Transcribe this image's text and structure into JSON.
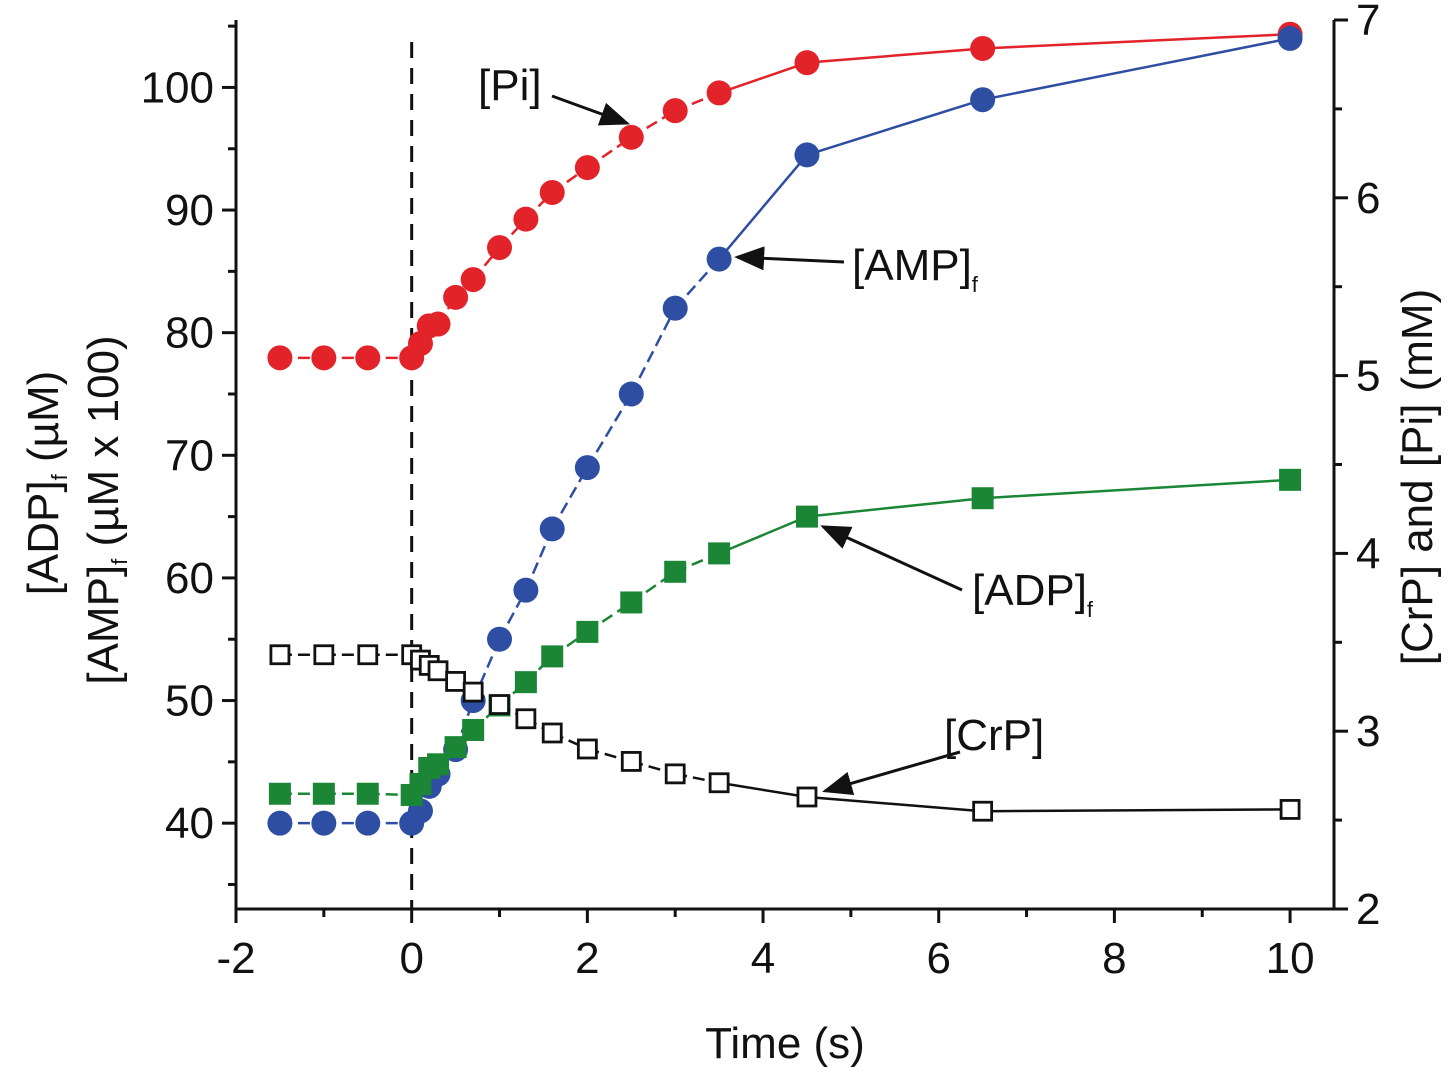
{
  "chart_data": {
    "type": "line",
    "title": "",
    "xlabel": "Time (s)",
    "ylabel_left": {
      "line1": "[ADP]",
      "line1_sub": "f",
      "line1_unit": " (µM)",
      "line2": "[AMP]",
      "line2_sub": "f",
      "line2_unit": " (µM x 100)"
    },
    "ylabel_right": "[CrP] and [Pi] (mM)",
    "xlim": [
      -2,
      10.5
    ],
    "ylim_left": [
      33,
      105.5
    ],
    "ylim_right": [
      2,
      7
    ],
    "x_ticks": [
      -2,
      0,
      2,
      4,
      6,
      8,
      10
    ],
    "x_tick_labels": [
      "-2",
      "0",
      "2",
      "4",
      "6",
      "8",
      "10"
    ],
    "y_left_ticks": [
      40,
      50,
      60,
      70,
      80,
      90,
      100
    ],
    "y_left_tick_labels": [
      "40",
      "50",
      "60",
      "70",
      "80",
      "90",
      "100"
    ],
    "y_right_ticks": [
      2,
      3,
      4,
      5,
      6,
      7
    ],
    "y_right_tick_labels": [
      "2",
      "3",
      "4",
      "5",
      "6",
      "7"
    ],
    "reference_line": {
      "x": 0,
      "style": "dashed",
      "color": "#111111"
    },
    "series": [
      {
        "name": "[Pi]",
        "axis": "right",
        "color": "#e3232a",
        "marker": "circle-filled",
        "x": [
          -1.5,
          -1,
          -0.5,
          0,
          0.1,
          0.2,
          0.3,
          0.5,
          0.7,
          1,
          1.3,
          1.6,
          2,
          2.5,
          3,
          3.5,
          4.5,
          6.5,
          10
        ],
        "values": [
          5.1,
          5.1,
          5.1,
          5.1,
          5.18,
          5.28,
          5.29,
          5.44,
          5.54,
          5.72,
          5.88,
          6.03,
          6.17,
          6.34,
          6.49,
          6.59,
          6.76,
          6.84,
          6.92
        ]
      },
      {
        "name": "[AMP]f",
        "axis": "left",
        "color": "#2e4ea3",
        "marker": "circle-filled",
        "x": [
          -1.5,
          -1,
          -0.5,
          0,
          0.1,
          0.2,
          0.3,
          0.5,
          0.7,
          1,
          1.3,
          1.6,
          2,
          2.5,
          3,
          3.5,
          4.5,
          6.5,
          10
        ],
        "values": [
          40,
          40,
          40,
          40,
          41,
          43,
          44,
          46,
          50,
          55,
          59,
          64,
          69,
          75,
          82,
          86,
          94.5,
          99,
          104
        ]
      },
      {
        "name": "[ADP]f",
        "axis": "left",
        "color": "#1a8636",
        "marker": "square-filled",
        "x": [
          -1.5,
          -1,
          -0.5,
          0,
          0.1,
          0.2,
          0.3,
          0.5,
          0.7,
          1,
          1.3,
          1.6,
          2,
          2.5,
          3,
          3.5,
          4.5,
          6.5,
          10
        ],
        "values": [
          42.4,
          42.4,
          42.4,
          42.3,
          43.2,
          44.5,
          44.8,
          46.2,
          47.6,
          49.6,
          51.5,
          53.6,
          55.6,
          58,
          60.5,
          62,
          65,
          66.5,
          68
        ]
      },
      {
        "name": "[CrP]",
        "axis": "right",
        "color": "#111111",
        "marker": "square-open",
        "x": [
          -1.5,
          -1,
          -0.5,
          0,
          0.1,
          0.2,
          0.3,
          0.5,
          0.7,
          1,
          1.3,
          1.6,
          2,
          2.5,
          3,
          3.5,
          4.5,
          6.5,
          10
        ],
        "values": [
          3.43,
          3.43,
          3.43,
          3.43,
          3.4,
          3.37,
          3.34,
          3.28,
          3.22,
          3.15,
          3.07,
          2.99,
          2.9,
          2.83,
          2.76,
          2.71,
          2.63,
          2.55,
          2.56
        ]
      }
    ],
    "annotations": [
      {
        "text": "[Pi]",
        "sub": "",
        "target_series": 0,
        "target_index": 13
      },
      {
        "text": "[AMP]",
        "sub": "f",
        "target_series": 1,
        "target_index": 15
      },
      {
        "text": "[ADP]",
        "sub": "f",
        "target_series": 2,
        "target_index": 16
      },
      {
        "text": "[CrP]",
        "sub": "",
        "target_series": 3,
        "target_index": 16
      }
    ]
  }
}
